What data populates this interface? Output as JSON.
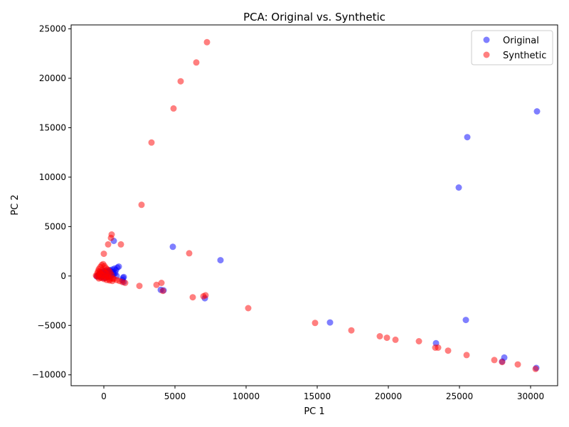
{
  "chart_data": {
    "type": "scatter",
    "title": "PCA: Original vs. Synthetic",
    "xlabel": "PC 1",
    "ylabel": "PC 2",
    "xlim": [
      -2300,
      31900
    ],
    "ylim": [
      -11100,
      25400
    ],
    "xticks": [
      0,
      5000,
      10000,
      15000,
      20000,
      25000,
      30000
    ],
    "yticks": [
      -10000,
      -5000,
      0,
      5000,
      10000,
      15000,
      20000,
      25000
    ],
    "grid": false,
    "legend_position": "top-right",
    "series": [
      {
        "name": "Original",
        "color": "#0000ff",
        "points": [
          [
            30450,
            16650
          ],
          [
            25550,
            14050
          ],
          [
            24950,
            8950
          ],
          [
            4850,
            2950
          ],
          [
            8200,
            1600
          ],
          [
            700,
            3550
          ],
          [
            15900,
            -4700
          ],
          [
            25450,
            -4450
          ],
          [
            23350,
            -6800
          ],
          [
            28150,
            -8250
          ],
          [
            30400,
            -9300
          ],
          [
            28000,
            -8650
          ],
          [
            4200,
            -1450
          ],
          [
            7100,
            -2250
          ],
          [
            4000,
            -1400
          ],
          [
            1050,
            950
          ],
          [
            950,
            850
          ],
          [
            750,
            750
          ],
          [
            600,
            650
          ],
          [
            1400,
            -100
          ],
          [
            1350,
            -200
          ],
          [
            1300,
            -400
          ],
          [
            1400,
            -600
          ],
          [
            900,
            0
          ],
          [
            500,
            300
          ],
          [
            400,
            600
          ],
          [
            300,
            500
          ],
          [
            200,
            400
          ],
          [
            100,
            300
          ],
          [
            50,
            200
          ],
          [
            0,
            100
          ],
          [
            -100,
            0
          ],
          [
            -200,
            -100
          ],
          [
            -300,
            0
          ],
          [
            -400,
            50
          ],
          [
            -500,
            -50
          ],
          [
            -350,
            150
          ],
          [
            -250,
            250
          ],
          [
            -150,
            350
          ],
          [
            0,
            -200
          ],
          [
            150,
            -150
          ],
          [
            300,
            -100
          ],
          [
            450,
            -50
          ],
          [
            600,
            100
          ],
          [
            700,
            200
          ],
          [
            800,
            300
          ],
          [
            -50,
            450
          ],
          [
            100,
            550
          ],
          [
            200,
            200
          ],
          [
            350,
            350
          ],
          [
            500,
            500
          ],
          [
            650,
            400
          ],
          [
            850,
            600
          ]
        ]
      },
      {
        "name": "Synthetic",
        "color": "#ff0000",
        "points": [
          [
            7250,
            23650
          ],
          [
            6500,
            21600
          ],
          [
            5400,
            19700
          ],
          [
            4900,
            16950
          ],
          [
            3350,
            13500
          ],
          [
            2650,
            7200
          ],
          [
            550,
            4200
          ],
          [
            500,
            3850
          ],
          [
            300,
            3200
          ],
          [
            1200,
            3200
          ],
          [
            0,
            2250
          ],
          [
            6000,
            2300
          ],
          [
            2500,
            -1000
          ],
          [
            3700,
            -900
          ],
          [
            4050,
            -700
          ],
          [
            4150,
            -1500
          ],
          [
            6250,
            -2150
          ],
          [
            7000,
            -2050
          ],
          [
            7150,
            -1950
          ],
          [
            10150,
            -3250
          ],
          [
            14850,
            -4750
          ],
          [
            17400,
            -5500
          ],
          [
            19400,
            -6100
          ],
          [
            19900,
            -6250
          ],
          [
            20500,
            -6450
          ],
          [
            22150,
            -6600
          ],
          [
            23300,
            -7250
          ],
          [
            23500,
            -7250
          ],
          [
            24200,
            -7550
          ],
          [
            25500,
            -8000
          ],
          [
            27450,
            -8500
          ],
          [
            28000,
            -8700
          ],
          [
            29100,
            -8950
          ],
          [
            30350,
            -9400
          ],
          [
            1500,
            -700
          ],
          [
            1300,
            -600
          ],
          [
            1100,
            -500
          ],
          [
            900,
            -400
          ],
          [
            700,
            -300
          ],
          [
            500,
            -200
          ],
          [
            300,
            -100
          ],
          [
            100,
            0
          ],
          [
            -100,
            100
          ],
          [
            -300,
            200
          ],
          [
            -500,
            0
          ],
          [
            -400,
            -100
          ],
          [
            -200,
            -200
          ],
          [
            0,
            -300
          ],
          [
            200,
            -400
          ],
          [
            400,
            -450
          ],
          [
            600,
            -500
          ],
          [
            -50,
            1200
          ],
          [
            -150,
            1100
          ],
          [
            50,
            1000
          ],
          [
            -250,
            900
          ],
          [
            150,
            800
          ],
          [
            -350,
            700
          ],
          [
            250,
            650
          ],
          [
            -100,
            600
          ],
          [
            350,
            550
          ],
          [
            -300,
            450
          ],
          [
            50,
            400
          ],
          [
            450,
            350
          ],
          [
            -450,
            300
          ],
          [
            150,
            250
          ],
          [
            -200,
            150
          ],
          [
            550,
            100
          ],
          [
            -550,
            50
          ],
          [
            250,
            -50
          ],
          [
            -150,
            -150
          ],
          [
            650,
            -250
          ],
          [
            -350,
            -250
          ],
          [
            400,
            -350
          ],
          [
            0,
            500
          ],
          [
            100,
            -200
          ],
          [
            -250,
            350
          ],
          [
            300,
            150
          ],
          [
            -400,
            500
          ]
        ]
      }
    ]
  }
}
